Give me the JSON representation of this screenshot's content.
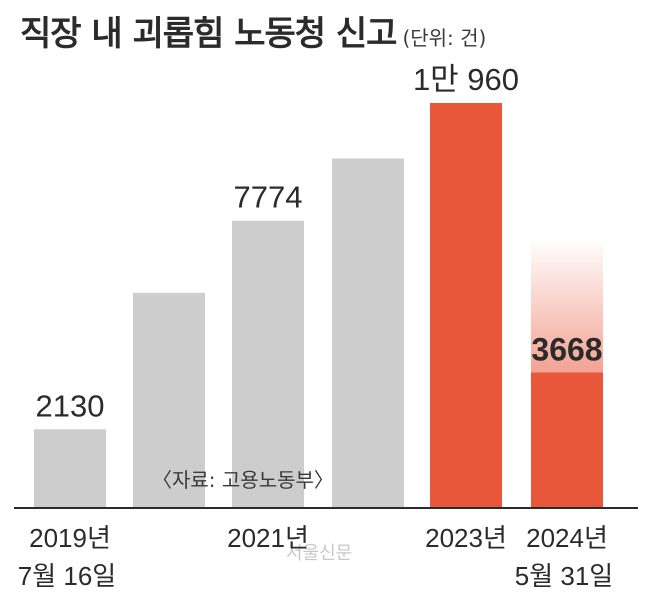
{
  "chart_data": {
    "type": "bar",
    "title": "직장 내 괴롭힘 노동청 신고",
    "unit": "(단위: 건)",
    "categories": [
      "2019년\n7월 16일",
      "",
      "2021년",
      "",
      "2023년",
      "2024년\n5월 31일"
    ],
    "values": [
      2130,
      5823,
      7774,
      9458,
      10960,
      3668
    ],
    "data_labels": [
      "2130",
      "",
      "7774",
      "",
      "1만 960",
      "3668"
    ],
    "bar_colors": [
      "#cdcdcd",
      "#cdcdcd",
      "#cdcdcd",
      "#cdcdcd",
      "#e8573a",
      "#e8573a"
    ],
    "ylim": [
      0,
      12000
    ],
    "grid": false,
    "source": "〈자료: 고용노동부〉",
    "watermark": "서울신문"
  }
}
